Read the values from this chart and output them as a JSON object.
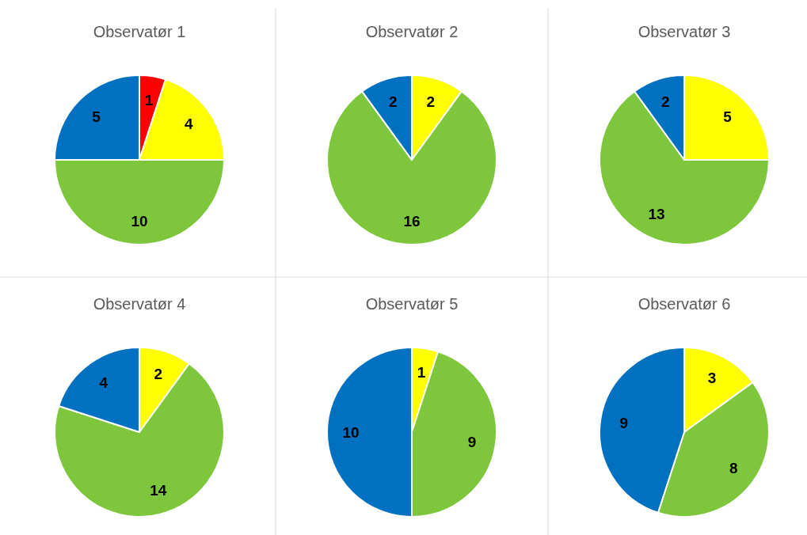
{
  "chart_data": [
    {
      "type": "pie",
      "title": "Observatør 1",
      "categories": [
        null,
        null,
        null,
        null
      ],
      "values": [
        1,
        4,
        10,
        5
      ],
      "colors": [
        "#ff0000",
        "#ffff00",
        "#7ec63b",
        "#0070c0"
      ],
      "data_labels": true
    },
    {
      "type": "pie",
      "title": "Observatør 2",
      "categories": [
        null,
        null,
        null
      ],
      "values": [
        2,
        16,
        2
      ],
      "colors": [
        "#ffff00",
        "#7ec63b",
        "#0070c0"
      ],
      "data_labels": true
    },
    {
      "type": "pie",
      "title": "Observatør 3",
      "categories": [
        null,
        null,
        null
      ],
      "values": [
        5,
        13,
        2
      ],
      "colors": [
        "#ffff00",
        "#7ec63b",
        "#0070c0"
      ],
      "data_labels": true
    },
    {
      "type": "pie",
      "title": "Observatør 4",
      "categories": [
        null,
        null,
        null
      ],
      "values": [
        2,
        14,
        4
      ],
      "colors": [
        "#ffff00",
        "#7ec63b",
        "#0070c0"
      ],
      "data_labels": true
    },
    {
      "type": "pie",
      "title": "Observatør 5",
      "categories": [
        null,
        null,
        null
      ],
      "values": [
        1,
        9,
        10
      ],
      "colors": [
        "#ffff00",
        "#7ec63b",
        "#0070c0"
      ],
      "data_labels": true
    },
    {
      "type": "pie",
      "title": "Observatør 6",
      "categories": [
        null,
        null,
        null
      ],
      "values": [
        3,
        8,
        9
      ],
      "colors": [
        "#ffff00",
        "#7ec63b",
        "#0070c0"
      ],
      "data_labels": true
    }
  ]
}
